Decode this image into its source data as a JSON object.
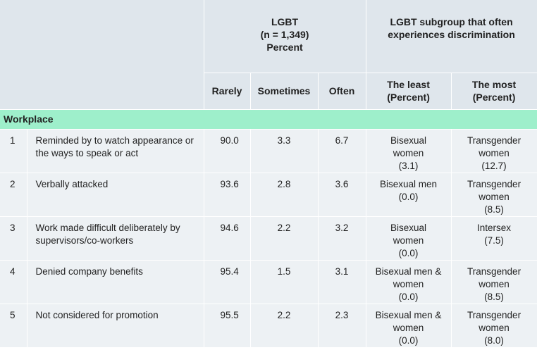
{
  "header": {
    "lgbt_title": "LGBT",
    "lgbt_n": "(n = 1,349)",
    "lgbt_unit": "Percent",
    "subgroup_title": "LGBT subgroup that often experiences discrimination",
    "col_rarely": "Rarely",
    "col_sometimes": "Sometimes",
    "col_often": "Often",
    "col_least_1": "The least",
    "col_least_2": "(Percent)",
    "col_most_1": "The most",
    "col_most_2": "(Percent)"
  },
  "section": {
    "label": "Workplace"
  },
  "rows": [
    {
      "num": "1",
      "item": "Reminded by to watch appearance or the ways to speak or act",
      "rarely": "90.0",
      "sometimes": "3.3",
      "often": "6.7",
      "least": [
        "Bisexual",
        "women",
        "(3.1)"
      ],
      "most": [
        "Transgender",
        "women",
        "(12.7)"
      ]
    },
    {
      "num": "2",
      "item": "Verbally attacked",
      "rarely": "93.6",
      "sometimes": "2.8",
      "often": "3.6",
      "least": [
        "Bisexual men",
        "(0.0)",
        ""
      ],
      "most": [
        "Transgender",
        "women",
        "(8.5)"
      ]
    },
    {
      "num": "3",
      "item": "Work made difficult deliberately by supervisors/co-workers",
      "rarely": "94.6",
      "sometimes": "2.2",
      "often": "3.2",
      "least": [
        "Bisexual",
        "women",
        "(0.0)"
      ],
      "most": [
        "Intersex",
        "(7.5)",
        ""
      ]
    },
    {
      "num": "4",
      "item": "Denied company benefits",
      "rarely": "95.4",
      "sometimes": "1.5",
      "often": "3.1",
      "least": [
        "Bisexual men &",
        "women",
        "(0.0)"
      ],
      "most": [
        "Transgender",
        "women",
        "(8.5)"
      ]
    },
    {
      "num": "5",
      "item": "Not considered for promotion",
      "rarely": "95.5",
      "sometimes": "2.2",
      "often": "2.3",
      "least": [
        "Bisexual men &",
        "women",
        "(0.0)"
      ],
      "most": [
        "Transgender",
        "women",
        "(8.0)"
      ]
    }
  ]
}
